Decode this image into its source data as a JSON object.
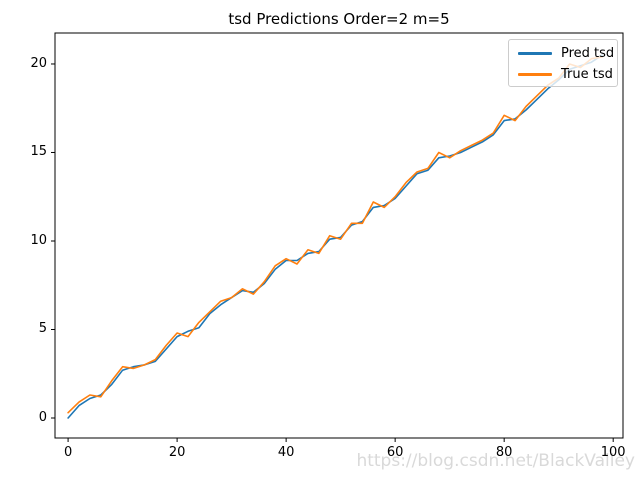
{
  "title": "tsd Predictions Order=2 m=5",
  "watermark": "https://blog.csdn.net/BlackValley",
  "legend": {
    "items": [
      {
        "label": "Pred tsd",
        "color": "#1f77b4"
      },
      {
        "label": "True tsd",
        "color": "#ff7f0e"
      }
    ]
  },
  "chart_data": {
    "type": "line",
    "title": "tsd Predictions Order=2 m=5",
    "xlabel": "",
    "ylabel": "",
    "xlim": [
      -2.4,
      101.8
    ],
    "ylim": [
      -1.13,
      21.75
    ],
    "xticks": [
      0,
      20,
      40,
      60,
      80,
      100
    ],
    "yticks": [
      0,
      5,
      10,
      15,
      20
    ],
    "grid": false,
    "legend_position": "upper right",
    "x": [
      0,
      2,
      4,
      6,
      8,
      10,
      12,
      14,
      16,
      18,
      20,
      22,
      24,
      26,
      28,
      30,
      32,
      34,
      36,
      38,
      40,
      42,
      44,
      46,
      48,
      50,
      52,
      54,
      56,
      58,
      60,
      62,
      64,
      66,
      68,
      70,
      72,
      74,
      76,
      78,
      80,
      82,
      84,
      86,
      88,
      90,
      92,
      94,
      96,
      98
    ],
    "series": [
      {
        "name": "Pred tsd",
        "color": "#1f77b4",
        "values": [
          0.0,
          0.7,
          1.1,
          1.3,
          1.9,
          2.7,
          2.9,
          3.0,
          3.2,
          3.9,
          4.6,
          4.9,
          5.1,
          5.9,
          6.4,
          6.8,
          7.2,
          7.1,
          7.6,
          8.4,
          8.9,
          8.9,
          9.3,
          9.4,
          10.1,
          10.2,
          10.9,
          11.1,
          11.9,
          12.0,
          12.4,
          13.1,
          13.8,
          14.0,
          14.7,
          14.8,
          15.0,
          15.3,
          15.6,
          16.0,
          16.8,
          16.9,
          17.4,
          18.0,
          18.6,
          19.1,
          19.7,
          19.9,
          20.1,
          20.5
        ]
      },
      {
        "name": "True tsd",
        "color": "#ff7f0e",
        "values": [
          0.3,
          0.9,
          1.3,
          1.2,
          2.1,
          2.9,
          2.8,
          3.0,
          3.3,
          4.1,
          4.8,
          4.6,
          5.4,
          6.0,
          6.6,
          6.8,
          7.3,
          7.0,
          7.7,
          8.6,
          9.0,
          8.7,
          9.5,
          9.3,
          10.3,
          10.1,
          11.0,
          11.0,
          12.2,
          11.9,
          12.5,
          13.3,
          13.9,
          14.1,
          15.0,
          14.7,
          15.1,
          15.4,
          15.7,
          16.1,
          17.1,
          16.8,
          17.6,
          18.2,
          18.8,
          19.2,
          20.0,
          19.8,
          20.3,
          20.4
        ]
      }
    ]
  }
}
